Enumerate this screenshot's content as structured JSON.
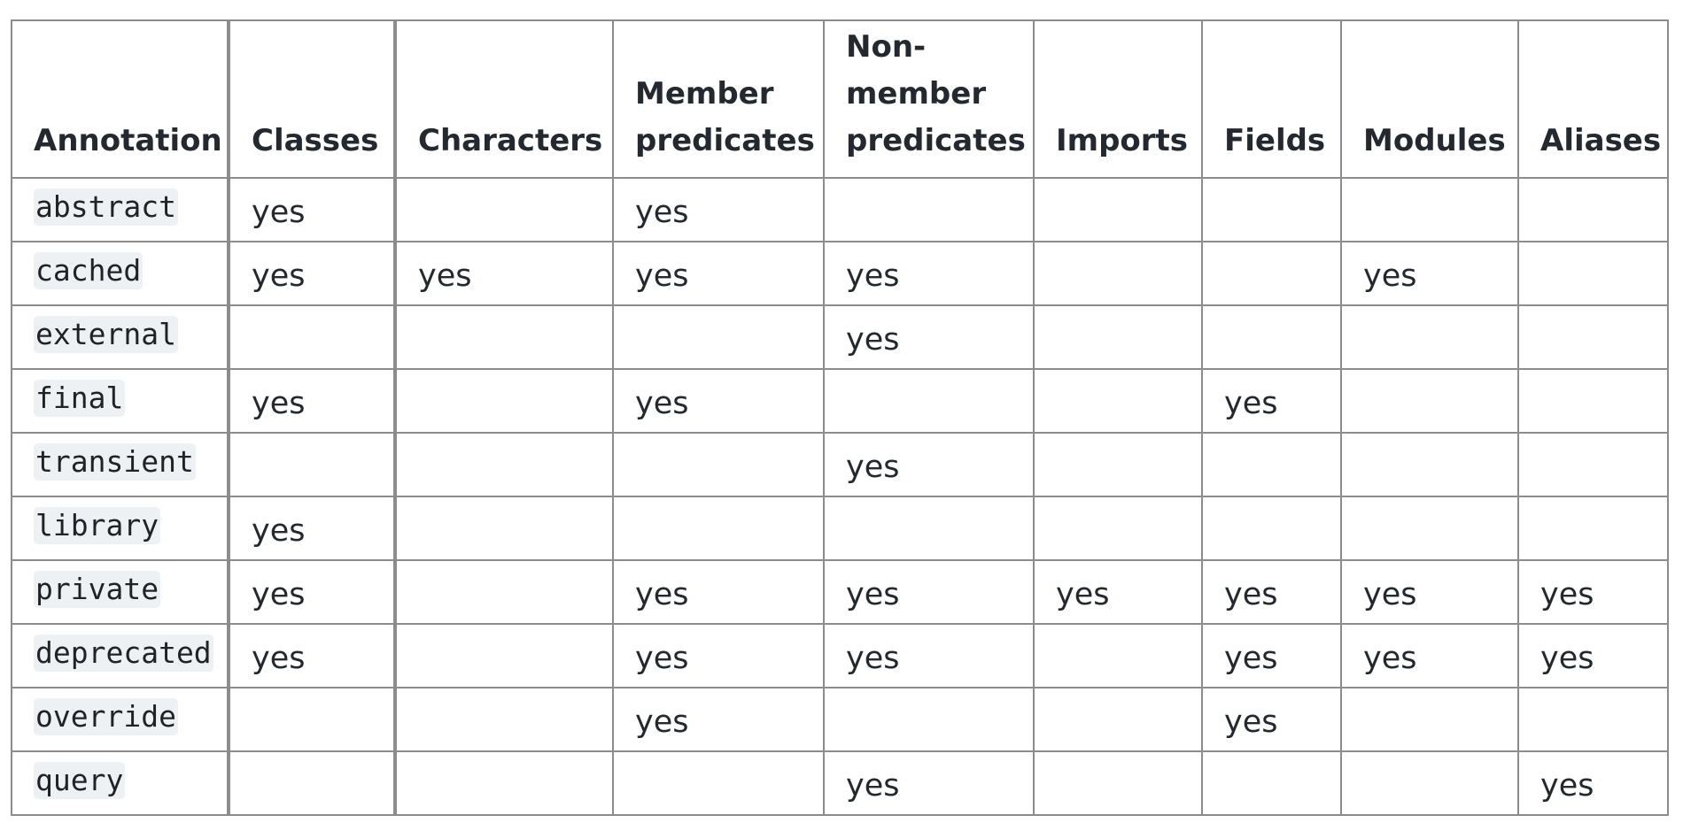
{
  "table": {
    "headers": [
      "Annotation",
      "Classes",
      "Characters",
      "Member predicates",
      "Non-member predicates",
      "Imports",
      "Fields",
      "Modules",
      "Aliases"
    ],
    "rows": [
      {
        "annotation": "abstract",
        "cells": [
          "yes",
          "",
          "yes",
          "",
          "",
          "",
          "",
          ""
        ]
      },
      {
        "annotation": "cached",
        "cells": [
          "yes",
          "yes",
          "yes",
          "yes",
          "",
          "",
          "yes",
          ""
        ]
      },
      {
        "annotation": "external",
        "cells": [
          "",
          "",
          "",
          "yes",
          "",
          "",
          "",
          ""
        ]
      },
      {
        "annotation": "final",
        "cells": [
          "yes",
          "",
          "yes",
          "",
          "",
          "yes",
          "",
          ""
        ]
      },
      {
        "annotation": "transient",
        "cells": [
          "",
          "",
          "",
          "yes",
          "",
          "",
          "",
          ""
        ]
      },
      {
        "annotation": "library",
        "cells": [
          "yes",
          "",
          "",
          "",
          "",
          "",
          "",
          ""
        ]
      },
      {
        "annotation": "private",
        "cells": [
          "yes",
          "",
          "yes",
          "yes",
          "yes",
          "yes",
          "yes",
          "yes"
        ]
      },
      {
        "annotation": "deprecated",
        "cells": [
          "yes",
          "",
          "yes",
          "yes",
          "",
          "yes",
          "yes",
          "yes"
        ]
      },
      {
        "annotation": "override",
        "cells": [
          "",
          "",
          "yes",
          "",
          "",
          "yes",
          "",
          ""
        ]
      },
      {
        "annotation": "query",
        "cells": [
          "",
          "",
          "",
          "yes",
          "",
          "",
          "",
          "yes"
        ]
      }
    ]
  }
}
